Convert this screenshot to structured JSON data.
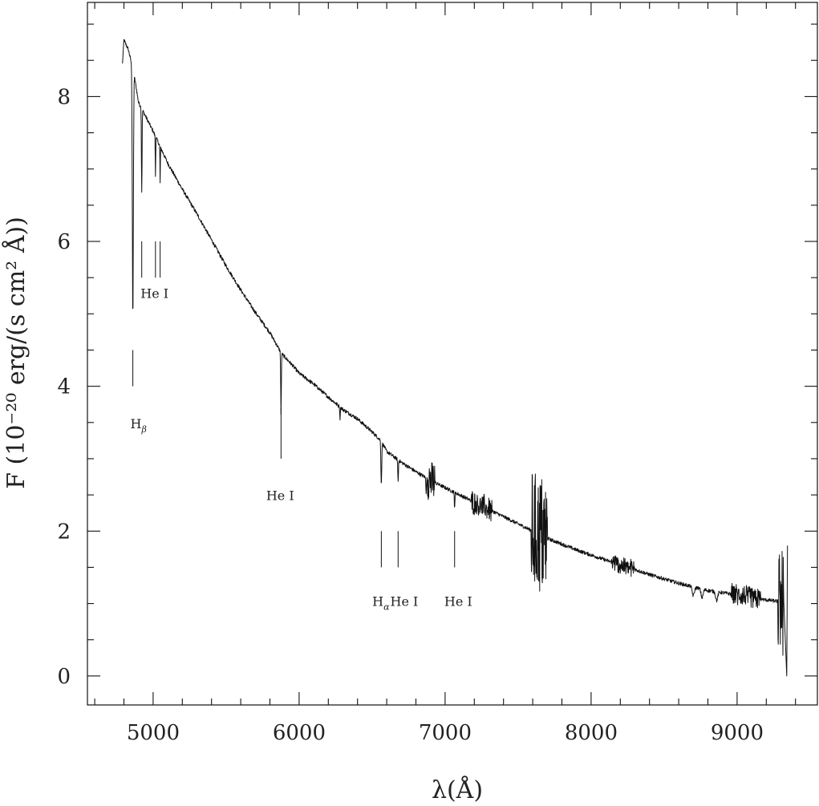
{
  "chart_data": {
    "type": "line",
    "title": "",
    "xlabel": "λ(Å)",
    "ylabel": "F (10⁻²⁰ erg/(s cm² Å))",
    "xlim": [
      4550,
      9550
    ],
    "ylim": [
      -0.4,
      9.3
    ],
    "x_ticks": [
      5000,
      6000,
      7000,
      8000,
      9000
    ],
    "x_tick_labels": [
      "5000",
      "6000",
      "7000",
      "8000",
      "9000"
    ],
    "x_minor_step": 200,
    "y_ticks": [
      0,
      2,
      4,
      6,
      8
    ],
    "y_tick_labels": [
      "0",
      "2",
      "4",
      "6",
      "8"
    ],
    "y_minor_step": 0.5,
    "grid": false,
    "series": [
      {
        "continuum": [
          [
            4790,
            8.45
          ],
          [
            4800,
            8.78
          ],
          [
            4830,
            8.65
          ],
          [
            4870,
            8.3
          ],
          [
            4900,
            7.92
          ],
          [
            4950,
            7.72
          ],
          [
            5000,
            7.52
          ],
          [
            5050,
            7.3
          ],
          [
            5100,
            7.08
          ],
          [
            5200,
            6.72
          ],
          [
            5300,
            6.38
          ],
          [
            5400,
            6.02
          ],
          [
            5500,
            5.66
          ],
          [
            5600,
            5.33
          ],
          [
            5700,
            5.02
          ],
          [
            5800,
            4.74
          ],
          [
            5880,
            4.45
          ],
          [
            5950,
            4.3
          ],
          [
            6000,
            4.18
          ],
          [
            6100,
            4.03
          ],
          [
            6200,
            3.85
          ],
          [
            6300,
            3.68
          ],
          [
            6400,
            3.55
          ],
          [
            6500,
            3.37
          ],
          [
            6560,
            3.25
          ],
          [
            6600,
            3.1
          ],
          [
            6700,
            2.95
          ],
          [
            6800,
            2.82
          ],
          [
            6900,
            2.7
          ],
          [
            7000,
            2.6
          ],
          [
            7100,
            2.5
          ],
          [
            7200,
            2.4
          ],
          [
            7300,
            2.3
          ],
          [
            7400,
            2.2
          ],
          [
            7500,
            2.1
          ],
          [
            7600,
            2.0
          ],
          [
            7700,
            1.9
          ],
          [
            7800,
            1.82
          ],
          [
            7900,
            1.74
          ],
          [
            8000,
            1.67
          ],
          [
            8100,
            1.6
          ],
          [
            8200,
            1.53
          ],
          [
            8300,
            1.47
          ],
          [
            8400,
            1.4
          ],
          [
            8500,
            1.34
          ],
          [
            8600,
            1.28
          ],
          [
            8700,
            1.23
          ],
          [
            8800,
            1.18
          ],
          [
            8900,
            1.15
          ],
          [
            9000,
            1.12
          ],
          [
            9100,
            1.08
          ],
          [
            9200,
            1.05
          ],
          [
            9280,
            1.03
          ],
          [
            9320,
            1.0
          ]
        ],
        "absorption_lines": [
          {
            "x": 4861,
            "depth": 3.45,
            "width": 5
          },
          {
            "x": 4922,
            "depth": 1.15,
            "width": 3
          },
          {
            "x": 5016,
            "depth": 0.55,
            "width": 2
          },
          {
            "x": 5048,
            "depth": 0.5,
            "width": 2
          },
          {
            "x": 5876,
            "depth": 0.85,
            "width": 3
          },
          {
            "x": 6280,
            "depth": 0.2,
            "width": 2
          },
          {
            "x": 6563,
            "depth": 0.6,
            "width": 4
          },
          {
            "x": 6678,
            "depth": 0.3,
            "width": 3
          },
          {
            "x": 6870,
            "depth": 0.2,
            "width": 3
          },
          {
            "x": 7065,
            "depth": 0.2,
            "width": 3
          },
          {
            "x": 8700,
            "depth": 0.12,
            "width": 10
          },
          {
            "x": 8760,
            "depth": 0.12,
            "width": 10
          },
          {
            "x": 8860,
            "depth": 0.12,
            "width": 10
          }
        ],
        "noisy_regions": [
          {
            "from": 6880,
            "to": 6930,
            "amplitude": 0.28
          },
          {
            "from": 7180,
            "to": 7320,
            "amplitude": 0.16
          },
          {
            "from": 7590,
            "to": 7700,
            "amplitude": 0.85
          },
          {
            "from": 8140,
            "to": 8300,
            "amplitude": 0.12
          },
          {
            "from": 8960,
            "to": 9160,
            "amplitude": 0.14
          },
          {
            "from": 9280,
            "to": 9330,
            "amplitude": 0.75
          }
        ]
      }
    ],
    "line_markers": [
      {
        "x": 4861,
        "y_from": 4.0,
        "y_to": 4.5
      },
      {
        "x": 4922,
        "y_from": 5.5,
        "y_to": 6.0
      },
      {
        "x": 5016,
        "y_from": 5.5,
        "y_to": 6.0
      },
      {
        "x": 5048,
        "y_from": 5.5,
        "y_to": 6.0
      },
      {
        "x": 5876,
        "y_from": 3.0,
        "y_to": 3.7
      },
      {
        "x": 6563,
        "y_from": 1.5,
        "y_to": 2.0
      },
      {
        "x": 6678,
        "y_from": 1.5,
        "y_to": 2.0
      },
      {
        "x": 7065,
        "y_from": 1.5,
        "y_to": 2.0
      }
    ],
    "annotations": [
      {
        "main": "H",
        "sub": "β",
        "x": 4900,
        "y": 3.42
      },
      {
        "main": "He I",
        "sub": "",
        "x": 5010,
        "y": 5.22
      },
      {
        "main": "He I",
        "sub": "",
        "x": 5870,
        "y": 2.43
      },
      {
        "main": "H",
        "sub": "α",
        "x": 6560,
        "y": 0.97
      },
      {
        "main": "He I",
        "sub": "",
        "x": 6720,
        "y": 0.97
      },
      {
        "main": "He I",
        "sub": "",
        "x": 7090,
        "y": 0.97
      }
    ]
  }
}
